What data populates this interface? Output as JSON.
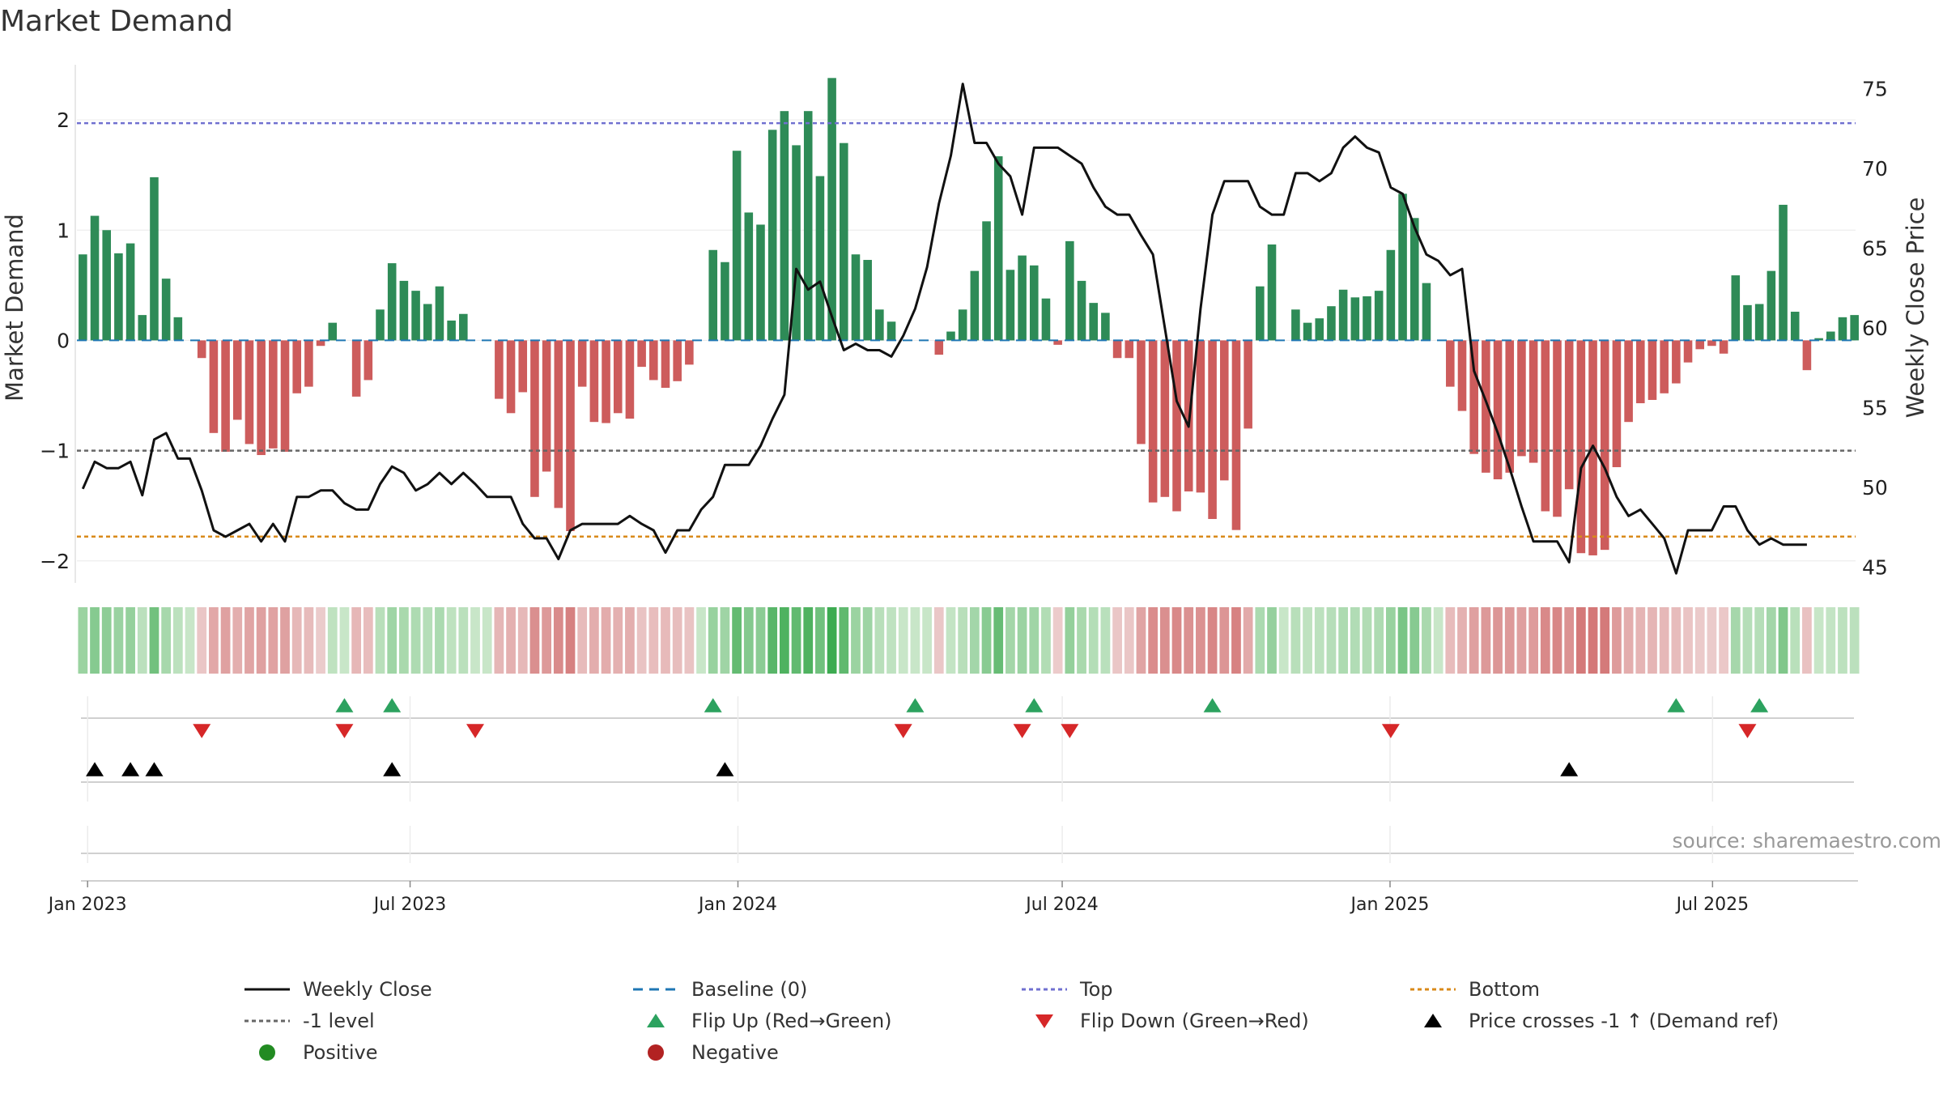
{
  "title": "Market Demand",
  "source_text": "source: sharemaestro.com",
  "colors": {
    "positive": "#2e8b57",
    "negative": "#cd5c5c",
    "price": "#111111",
    "top": "#7070d0",
    "bottom": "#d98a1a",
    "minus_one": "#666666",
    "baseline": "#1f77b4",
    "flip_up": "#2ca25f",
    "flip_down": "#d62728",
    "cross": "#000000"
  },
  "legend": [
    {
      "key": "weekly_close",
      "label": "Weekly Close",
      "style": "solid-line",
      "color": "#111111"
    },
    {
      "key": "baseline",
      "label": "Baseline (0)",
      "style": "dashed-line",
      "color": "#1f77b4"
    },
    {
      "key": "top",
      "label": "Top",
      "style": "dotted-line",
      "color": "#7070d0"
    },
    {
      "key": "bottom",
      "label": "Bottom",
      "style": "dotted-line",
      "color": "#d98a1a"
    },
    {
      "key": "minus_one",
      "label": "-1 level",
      "style": "dotted-line",
      "color": "#666666"
    },
    {
      "key": "flip_up",
      "label": "Flip Up (Red→Green)",
      "style": "triangle-up",
      "color": "#2ca25f"
    },
    {
      "key": "flip_down",
      "label": "Flip Down (Green→Red)",
      "style": "triangle-down",
      "color": "#d62728"
    },
    {
      "key": "cross",
      "label": "Price crosses -1 ↑ (Demand ref)",
      "style": "triangle-up",
      "color": "#000000"
    },
    {
      "key": "positive",
      "label": "Positive",
      "style": "circle",
      "color": "#228b22"
    },
    {
      "key": "negative",
      "label": "Negative",
      "style": "circle",
      "color": "#b22222"
    }
  ],
  "chart_data": {
    "type": "bar",
    "title": "Market Demand",
    "ylabel": "Market Demand",
    "y2label": "Weekly Close Price",
    "ylim": [
      -2.2,
      2.5
    ],
    "y2lim": [
      44,
      76.5
    ],
    "yticks": [
      -2,
      -1,
      0,
      1,
      2
    ],
    "y2ticks": [
      45,
      50,
      55,
      60,
      65,
      70,
      75
    ],
    "x_start": "2022-12-26",
    "x_end": "2025-09-22",
    "xticks": [
      {
        "label": "Jan 2023",
        "date": "2023-01-01"
      },
      {
        "label": "Jul 2023",
        "date": "2023-07-01"
      },
      {
        "label": "Jan 2024",
        "date": "2024-01-01"
      },
      {
        "label": "Jul 2024",
        "date": "2024-07-01"
      },
      {
        "label": "Jan 2025",
        "date": "2025-01-01"
      },
      {
        "label": "Jul 2025",
        "date": "2025-07-01"
      }
    ],
    "reference_lines": {
      "top": 1.97,
      "bottom": -1.78,
      "minus_one": -1.0,
      "baseline": 0
    },
    "demand": [
      0.78,
      1.13,
      1.0,
      0.79,
      0.88,
      0.23,
      1.48,
      0.56,
      0.21,
      0.0,
      -0.16,
      -0.84,
      -1.01,
      -0.72,
      -0.94,
      -1.04,
      -0.98,
      -1.01,
      -0.48,
      -0.42,
      -0.05,
      0.16,
      0.0,
      -0.51,
      -0.36,
      0.28,
      0.7,
      0.54,
      0.45,
      0.33,
      0.49,
      0.18,
      0.24,
      0.0,
      0.0,
      -0.53,
      -0.66,
      -0.47,
      -1.42,
      -1.19,
      -1.52,
      -1.73,
      -0.42,
      -0.74,
      -0.75,
      -0.66,
      -0.71,
      -0.24,
      -0.36,
      -0.43,
      -0.37,
      -0.22,
      0.0,
      0.82,
      0.71,
      1.72,
      1.16,
      1.05,
      1.91,
      2.08,
      1.77,
      2.08,
      1.49,
      2.38,
      1.79,
      0.78,
      0.73,
      0.28,
      0.17,
      0.0,
      0.0,
      0.0,
      -0.13,
      0.08,
      0.28,
      0.63,
      1.08,
      1.67,
      0.64,
      0.77,
      0.68,
      0.38,
      -0.04,
      0.9,
      0.54,
      0.34,
      0.25,
      -0.16,
      -0.16,
      -0.94,
      -1.47,
      -1.42,
      -1.55,
      -1.37,
      -1.38,
      -1.62,
      -1.27,
      -1.72,
      -0.8,
      0.49,
      0.87,
      0.0,
      0.28,
      0.16,
      0.2,
      0.31,
      0.46,
      0.39,
      0.4,
      0.45,
      0.82,
      1.33,
      1.11,
      0.52,
      0.0,
      -0.42,
      -0.64,
      -1.03,
      -1.2,
      -1.26,
      -1.2,
      -1.05,
      -1.11,
      -1.55,
      -1.6,
      -1.35,
      -1.93,
      -1.95,
      -1.9,
      -1.15,
      -0.74,
      -0.57,
      -0.54,
      -0.48,
      -0.39,
      -0.2,
      -0.08,
      -0.05,
      -0.12,
      0.59,
      0.32,
      0.33,
      0.63,
      1.23,
      0.26,
      -0.27,
      0.02,
      0.08,
      0.21,
      0.23
    ],
    "weekly_close": [
      49.9,
      51.6,
      51.2,
      51.2,
      51.6,
      49.5,
      53.0,
      53.4,
      51.8,
      51.8,
      49.8,
      47.3,
      46.9,
      47.3,
      47.7,
      46.6,
      47.7,
      46.6,
      49.4,
      49.4,
      49.8,
      49.8,
      49.0,
      48.6,
      48.6,
      50.2,
      51.3,
      50.9,
      49.8,
      50.2,
      50.9,
      50.2,
      50.9,
      50.2,
      49.4,
      49.4,
      49.4,
      47.7,
      46.8,
      46.8,
      45.5,
      47.3,
      47.7,
      47.7,
      47.7,
      47.7,
      48.2,
      47.7,
      47.3,
      45.9,
      47.3,
      47.3,
      48.6,
      49.4,
      51.4,
      51.4,
      51.4,
      52.6,
      54.3,
      55.8,
      63.7,
      62.4,
      62.9,
      60.7,
      58.6,
      59.0,
      58.6,
      58.6,
      58.2,
      59.5,
      61.2,
      63.8,
      67.8,
      70.8,
      75.3,
      71.6,
      71.6,
      70.3,
      69.5,
      67.1,
      71.3,
      71.3,
      71.3,
      70.8,
      70.3,
      68.8,
      67.6,
      67.1,
      67.1,
      65.8,
      64.6,
      60.0,
      55.4,
      53.8,
      61.2,
      67.1,
      69.2,
      69.2,
      69.2,
      67.6,
      67.1,
      67.1,
      69.7,
      69.7,
      69.2,
      69.7,
      71.3,
      72.0,
      71.3,
      71.0,
      68.8,
      68.4,
      66.3,
      64.6,
      64.2,
      63.3,
      63.7,
      57.3,
      55.4,
      53.4,
      51.2,
      48.8,
      46.6,
      46.6,
      46.6,
      45.3,
      51.2,
      52.6,
      51.2,
      49.4,
      48.2,
      48.6,
      47.7,
      46.8,
      44.6,
      47.3,
      47.3,
      47.3,
      48.8,
      48.8,
      47.3,
      46.4,
      46.8,
      46.4,
      46.4,
      46.4
    ],
    "heat_strip": "per-week color intensity from demand sign and magnitude",
    "flip_up_weeks": [
      22,
      26,
      53,
      70,
      80,
      95,
      134,
      141
    ],
    "flip_down_weeks": [
      10,
      22,
      33,
      69,
      79,
      83,
      110,
      140
    ],
    "price_cross_weeks": [
      1,
      4,
      6,
      26,
      54,
      125
    ]
  }
}
